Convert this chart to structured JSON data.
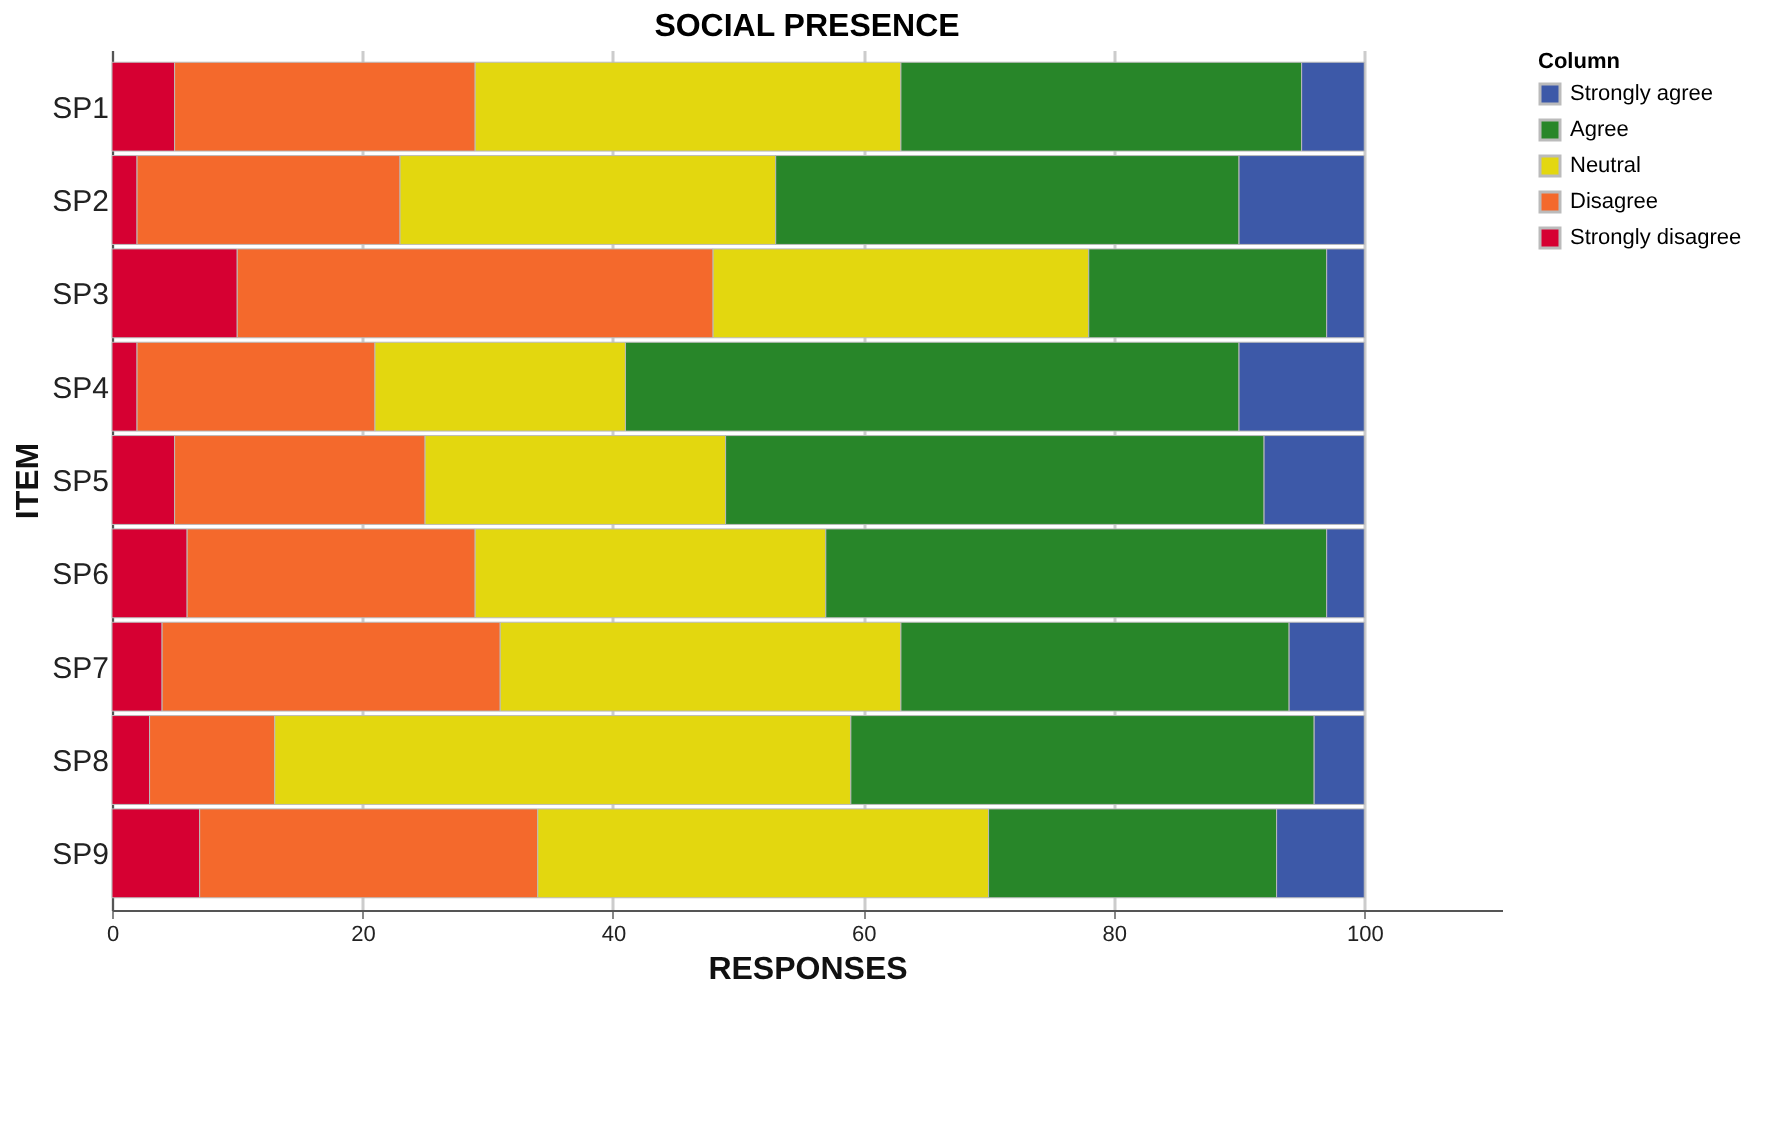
{
  "chart_data": {
    "type": "bar",
    "title": "SOCIAL PRESENCE",
    "xlabel": "RESPONSES",
    "ylabel": "ITEM",
    "legend_title": "Column",
    "orientation": "horizontal",
    "stacked": true,
    "categories": [
      "SP1",
      "SP2",
      "SP3",
      "SP4",
      "SP5",
      "SP6",
      "SP7",
      "SP8",
      "SP9"
    ],
    "series": [
      {
        "name": "Strongly disagree",
        "color": "#d60032",
        "values": [
          5,
          2,
          10,
          2,
          5,
          6,
          4,
          3,
          7
        ]
      },
      {
        "name": "Disagree",
        "color": "#f4692c",
        "values": [
          24,
          21,
          38,
          19,
          20,
          23,
          27,
          10,
          27
        ]
      },
      {
        "name": "Neutral",
        "color": "#e3d70f",
        "values": [
          34,
          30,
          30,
          20,
          24,
          28,
          32,
          46,
          36
        ]
      },
      {
        "name": "Agree",
        "color": "#288629",
        "values": [
          32,
          37,
          19,
          49,
          43,
          40,
          31,
          37,
          23
        ]
      },
      {
        "name": "Strongly agree",
        "color": "#3d59a8",
        "values": [
          5,
          10,
          3,
          10,
          8,
          3,
          6,
          4,
          7
        ]
      }
    ],
    "xlim": [
      0,
      111
    ],
    "xticks": [
      0,
      20,
      40,
      60,
      80,
      100
    ],
    "grid": "x",
    "legend": "top right"
  }
}
